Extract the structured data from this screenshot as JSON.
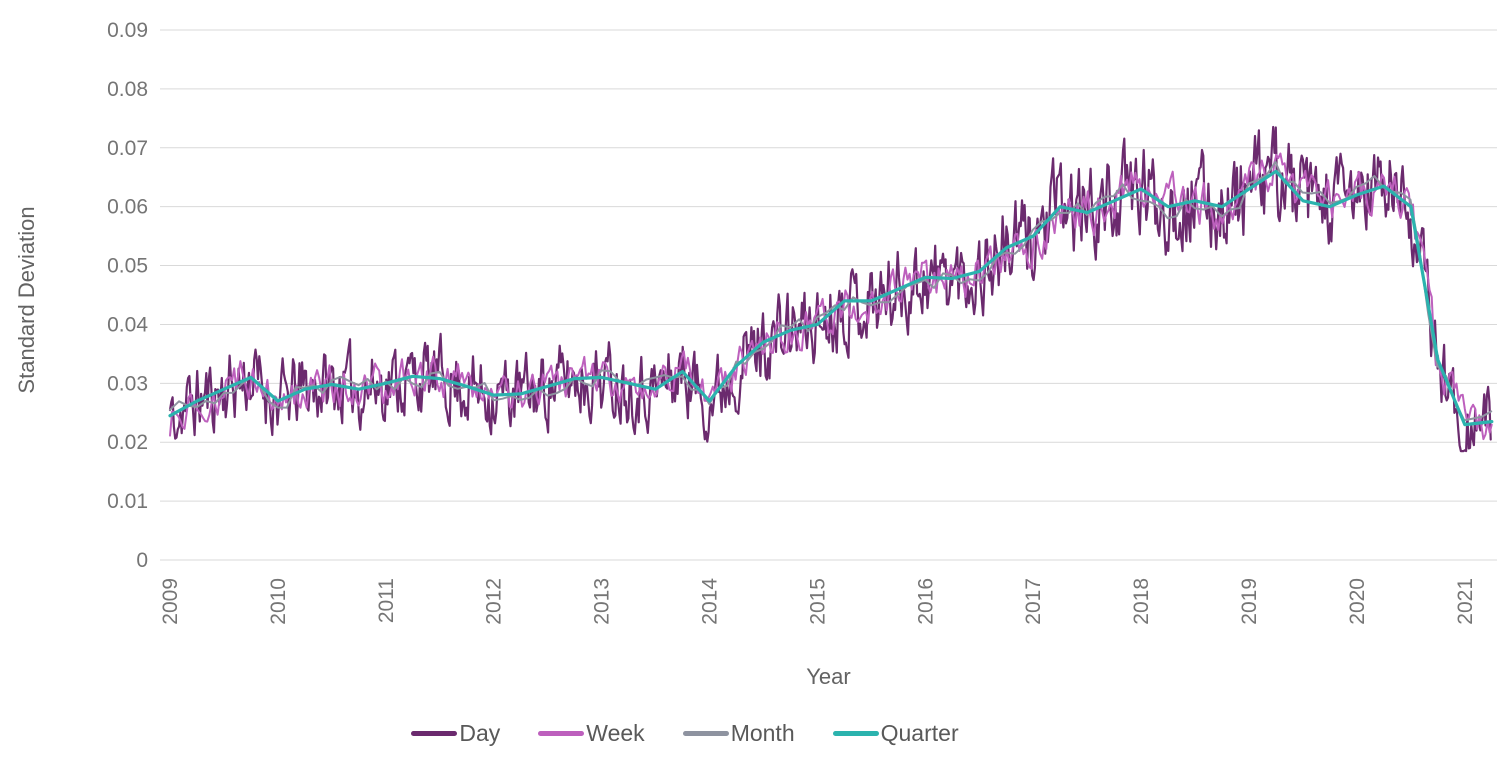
{
  "chart_data": {
    "type": "line",
    "title": "",
    "xlabel": "Year",
    "ylabel": "Standard Deviation",
    "xlim": [
      2009,
      2021.3
    ],
    "ylim": [
      0,
      0.09
    ],
    "grid": "horizontal-only",
    "gridline_color": "#d9d9d9",
    "legend_position": "bottom-center",
    "y_ticks": [
      "0",
      "0.01",
      "0.02",
      "0.03",
      "0.04",
      "0.05",
      "0.06",
      "0.07",
      "0.08",
      "0.09"
    ],
    "x_ticks": [
      "2009",
      "2010",
      "2011",
      "2012",
      "2013",
      "2014",
      "2015",
      "2016",
      "2017",
      "2018",
      "2019",
      "2020",
      "2021"
    ],
    "x_start": 2009,
    "x_step": 0.25,
    "quarter_values": [
      0.0245,
      0.027,
      0.029,
      0.031,
      0.027,
      0.029,
      0.0298,
      0.029,
      0.03,
      0.0312,
      0.0308,
      0.0295,
      0.028,
      0.0282,
      0.0295,
      0.0308,
      0.031,
      0.03,
      0.029,
      0.032,
      0.027,
      0.033,
      0.037,
      0.039,
      0.04,
      0.044,
      0.044,
      0.046,
      0.048,
      0.0478,
      0.049,
      0.053,
      0.055,
      0.06,
      0.059,
      0.061,
      0.063,
      0.06,
      0.061,
      0.06,
      0.063,
      0.066,
      0.061,
      0.06,
      0.062,
      0.0635,
      0.06,
      0.034,
      0.023,
      0.0235
    ],
    "noise_seed": 11,
    "series": [
      {
        "name": "Day",
        "color": "#6b2a6e",
        "stroke_width": 2.2,
        "style": "noisy",
        "sample_step_years": 0.012,
        "noise_amp": 0.006,
        "noise_persistence": 0.45
      },
      {
        "name": "Week",
        "color": "#bd60bd",
        "stroke_width": 2.0,
        "style": "noisy",
        "sample_step_years": 0.0192,
        "noise_amp": 0.003,
        "noise_persistence": 0.55
      },
      {
        "name": "Month",
        "color": "#8e93a0",
        "stroke_width": 2.0,
        "style": "noisy",
        "sample_step_years": 0.0833,
        "noise_amp": 0.0018,
        "noise_persistence": 0.3
      },
      {
        "name": "Quarter",
        "color": "#2bb3ae",
        "stroke_width": 3.2,
        "style": "anchor",
        "sample_step_years": 0.25,
        "noise_amp": 0,
        "noise_persistence": 0
      }
    ]
  }
}
